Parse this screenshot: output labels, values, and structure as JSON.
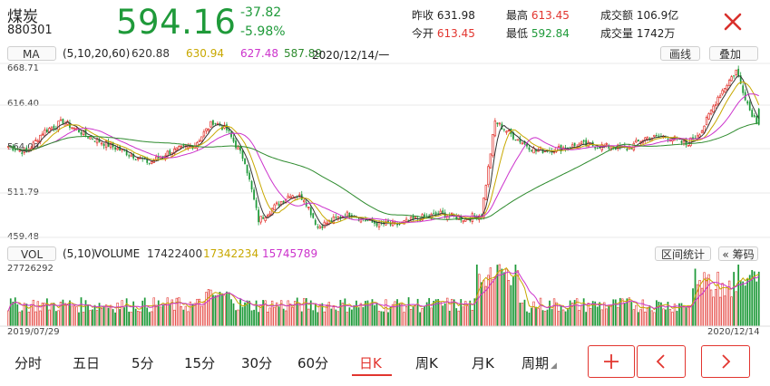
{
  "header": {
    "name": "煤炭",
    "code": "880301",
    "price": "594.16",
    "change": "-37.82",
    "change_pct": "-5.98%",
    "stats": [
      {
        "label": "昨收",
        "value": "631.98",
        "tone": "neutral"
      },
      {
        "label": "最高",
        "value": "613.45",
        "tone": "red"
      },
      {
        "label": "成交额",
        "value": "106.9亿",
        "tone": "neutral"
      },
      {
        "label": "今开",
        "value": "613.45",
        "tone": "red"
      },
      {
        "label": "最低",
        "value": "592.84",
        "tone": "green"
      },
      {
        "label": "成交量",
        "value": "1742万",
        "tone": "neutral"
      }
    ]
  },
  "ma_bar": {
    "name": "MA",
    "params": "(5,10,20,60)",
    "v1": "620.88",
    "v2": "630.94",
    "v3": "627.48",
    "v4": "587.89",
    "date": "2020/12/14/一",
    "btn_line": "画线",
    "btn_overlay": "叠加"
  },
  "price_axis": [
    "668.71",
    "616.40",
    "564.09",
    "511.79",
    "459.48"
  ],
  "vol_bar": {
    "name": "VOL",
    "params": "(5,10)",
    "label": "VOLUME",
    "v1": "17422400",
    "v2": "17342234",
    "v3": "15745789",
    "btn_range": "区间统计",
    "btn_chips": "筹码"
  },
  "vol_axis_max": "27726292",
  "dates": {
    "start": "2019/07/29",
    "end": "2020/12/14"
  },
  "tabs": [
    "分时",
    "五日",
    "5分",
    "15分",
    "30分",
    "60分",
    "日K",
    "周K",
    "月K",
    "周期"
  ],
  "active_tab": 6,
  "colors": {
    "up": "#e2352f",
    "down": "#1f9a3a",
    "ma5": "#333333",
    "ma10": "#c8a800",
    "ma20": "#cc33cc",
    "ma60": "#2e8b2e"
  },
  "chart_data": {
    "type": "candlestick",
    "y_range": [
      459.48,
      668.71
    ],
    "x_range": [
      "2019/07/29",
      "2020/12/14"
    ],
    "close_keypoints": [
      [
        0,
        568
      ],
      [
        8,
        560
      ],
      [
        15,
        585
      ],
      [
        24,
        598
      ],
      [
        35,
        580
      ],
      [
        48,
        565
      ],
      [
        62,
        548
      ],
      [
        70,
        560
      ],
      [
        82,
        570
      ],
      [
        90,
        598
      ],
      [
        96,
        588
      ],
      [
        104,
        550
      ],
      [
        110,
        478
      ],
      [
        116,
        492
      ],
      [
        124,
        510
      ],
      [
        130,
        505
      ],
      [
        136,
        470
      ],
      [
        144,
        480
      ],
      [
        150,
        486
      ],
      [
        160,
        475
      ],
      [
        170,
        472
      ],
      [
        180,
        480
      ],
      [
        190,
        486
      ],
      [
        200,
        480
      ],
      [
        208,
        485
      ],
      [
        214,
        598
      ],
      [
        222,
        580
      ],
      [
        232,
        562
      ],
      [
        242,
        565
      ],
      [
        252,
        570
      ],
      [
        262,
        568
      ],
      [
        272,
        565
      ],
      [
        280,
        578
      ],
      [
        290,
        580
      ],
      [
        298,
        570
      ],
      [
        305,
        588
      ],
      [
        312,
        628
      ],
      [
        320,
        660
      ],
      [
        326,
        612
      ],
      [
        330,
        594
      ]
    ],
    "volume_max": 27726292
  }
}
